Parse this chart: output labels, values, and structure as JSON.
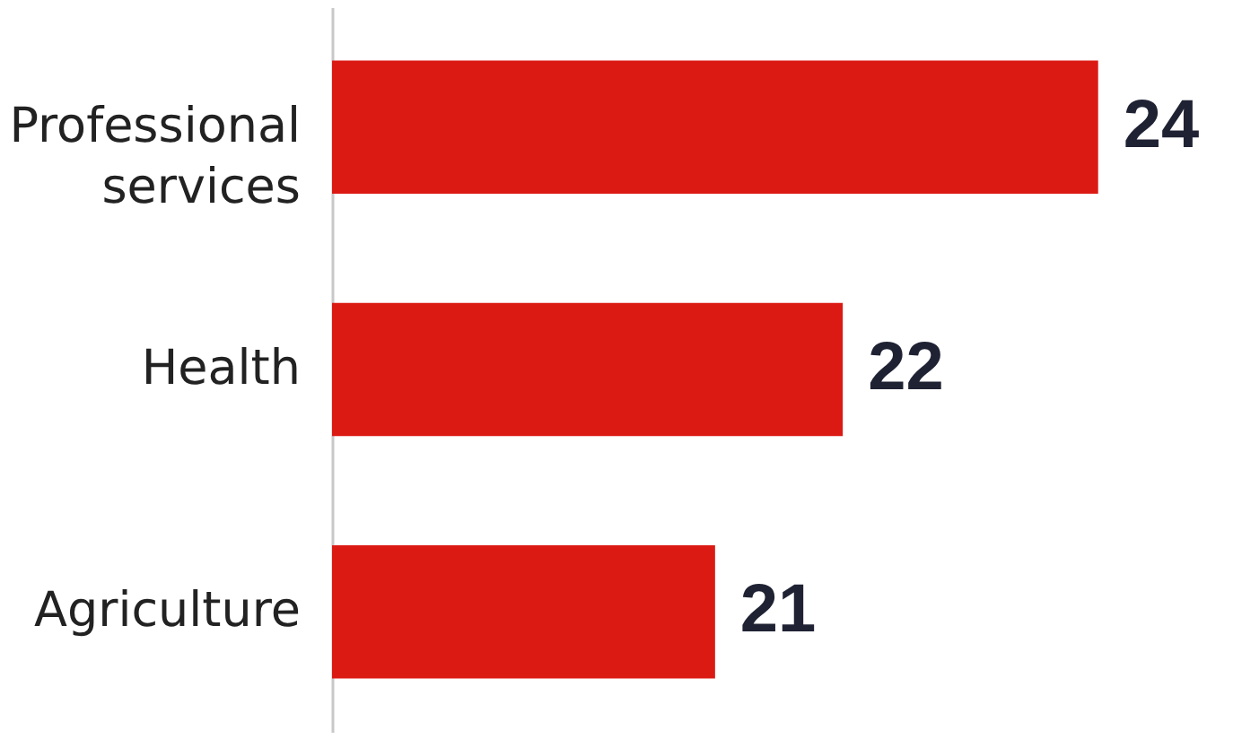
{
  "chart_data": {
    "type": "bar",
    "orientation": "horizontal",
    "categories": [
      "Professional services",
      "Health",
      "Agriculture"
    ],
    "values": [
      24,
      22,
      21
    ],
    "color": "#dc1a14",
    "xlim": [
      18,
      25
    ],
    "data_labels": true,
    "tick_labels": "y"
  }
}
